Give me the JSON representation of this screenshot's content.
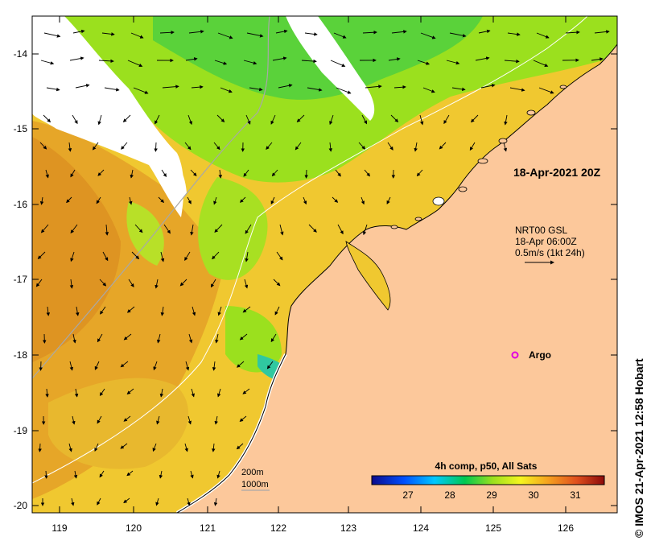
{
  "map": {
    "x_ticks": [
      "119",
      "120",
      "121",
      "122",
      "123",
      "124",
      "125",
      "126"
    ],
    "y_ticks": [
      "-14",
      "-15",
      "-16",
      "-17",
      "-18",
      "-19",
      "-20"
    ],
    "timestamp": "18-Apr-2021 20Z",
    "current_legend": {
      "line1": "NRT00 GSL",
      "line2": "18-Apr 06:00Z",
      "line3": "0.5m/s (1kt 24h)"
    },
    "argo_label": "Argo",
    "depth_legend": {
      "line1": "200m",
      "line2": "1000m"
    },
    "colorbar": {
      "title": "4h comp, p50, All Sats",
      "ticks": [
        "27",
        "28",
        "29",
        "30",
        "31"
      ],
      "colors": [
        "#0a0a8c",
        "#0050ff",
        "#00c8ff",
        "#00c850",
        "#9be01e",
        "#f5f51e",
        "#f5a01e",
        "#e0501e",
        "#8c0a0a"
      ]
    },
    "credit": "© IMOS 21-Apr-2021 12:58 Hobart",
    "colors": {
      "land": "#fcc89b",
      "cloud": "#ffffff",
      "sst_warm": "#e6a628",
      "sst_mid": "#f0c830",
      "sst_cool": "#9be01e",
      "sst_cold": "#44c84a"
    }
  }
}
